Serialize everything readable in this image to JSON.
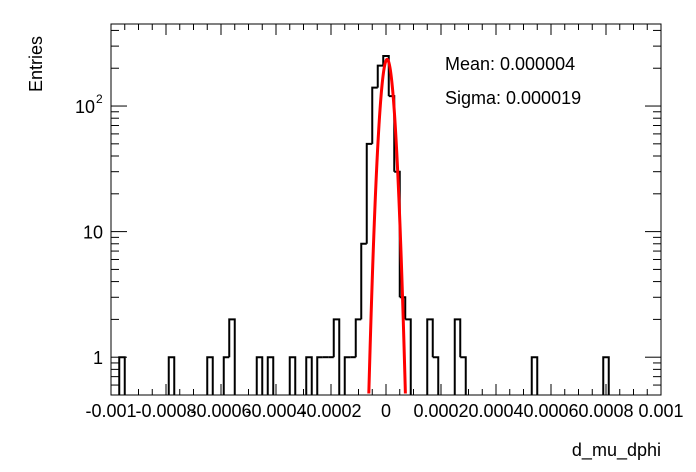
{
  "chart_data": {
    "type": "histogram",
    "xlabel": "d_mu_dphi",
    "ylabel": "Entries",
    "xlim": [
      -0.001,
      0.001
    ],
    "ylim": [
      0.5,
      450
    ],
    "yscale": "log",
    "grid": false,
    "x_tick_labels": [
      "-0.001",
      "-0.0008",
      "-0.0006",
      "-0.0004",
      "-0.0002",
      "0",
      "0.0002",
      "0.0004",
      "0.0006",
      "0.0008",
      "0.001"
    ],
    "x_ticks": [
      -0.001,
      -0.0008,
      -0.0006,
      -0.0004,
      -0.0002,
      0,
      0.0002,
      0.0004,
      0.0006,
      0.0008,
      0.001
    ],
    "y_ticks": [
      {
        "value": 1,
        "label": "1"
      },
      {
        "value": 10,
        "label": "10"
      },
      {
        "value": 100,
        "label": "10",
        "exponent": "2"
      }
    ],
    "bin_width": 2e-05,
    "bins": [
      {
        "x": -0.00096,
        "count": 1
      },
      {
        "x": -0.00078,
        "count": 1
      },
      {
        "x": -0.00064,
        "count": 1
      },
      {
        "x": -0.00058,
        "count": 1
      },
      {
        "x": -0.00056,
        "count": 2
      },
      {
        "x": -0.00046,
        "count": 1
      },
      {
        "x": -0.00042,
        "count": 1
      },
      {
        "x": -0.00034,
        "count": 1
      },
      {
        "x": -0.00028,
        "count": 1
      },
      {
        "x": -0.00024,
        "count": 1
      },
      {
        "x": -0.00022,
        "count": 1
      },
      {
        "x": -0.0002,
        "count": 1
      },
      {
        "x": -0.00018,
        "count": 2
      },
      {
        "x": -0.00014,
        "count": 1
      },
      {
        "x": -0.00012,
        "count": 1
      },
      {
        "x": -0.0001,
        "count": 2
      },
      {
        "x": -8e-05,
        "count": 8
      },
      {
        "x": -6e-05,
        "count": 50
      },
      {
        "x": -4e-05,
        "count": 140
      },
      {
        "x": -2e-05,
        "count": 210
      },
      {
        "x": 0,
        "count": 250
      },
      {
        "x": 2e-05,
        "count": 120
      },
      {
        "x": 4e-05,
        "count": 30
      },
      {
        "x": 6e-05,
        "count": 3
      },
      {
        "x": 8e-05,
        "count": 2
      },
      {
        "x": 0.00016,
        "count": 2
      },
      {
        "x": 0.00018,
        "count": 1
      },
      {
        "x": 0.00026,
        "count": 2
      },
      {
        "x": 0.00028,
        "count": 1
      },
      {
        "x": 0.00054,
        "count": 1
      },
      {
        "x": 0.0008,
        "count": 1
      }
    ],
    "fit": {
      "color": "#ff0000",
      "mean": 4e-06,
      "sigma": 1.9e-05,
      "peak": 235
    },
    "stats": {
      "mean_text": "Mean: 0.000004",
      "sigma_text": "Sigma: 0.000019"
    }
  }
}
